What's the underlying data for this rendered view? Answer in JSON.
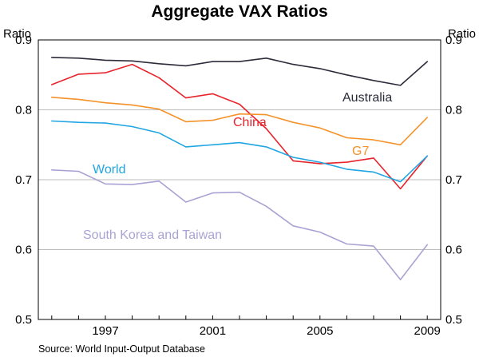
{
  "chart_data": {
    "type": "line",
    "title": "Aggregate VAX Ratios",
    "ylabel_left": "Ratio",
    "ylabel_right": "Ratio",
    "xlabel": "",
    "ylim": [
      0.5,
      0.9
    ],
    "xlim": [
      1994.5,
      2009.5
    ],
    "yticks": [
      0.9,
      0.8,
      0.7,
      0.6,
      0.5
    ],
    "ytick_labels": [
      "0.9",
      "0.8",
      "0.7",
      "0.6",
      "0.5"
    ],
    "xticks": [
      1997,
      2001,
      2005,
      2009
    ],
    "xtick_labels": [
      "1997",
      "2001",
      "2005",
      "2009"
    ],
    "grid": true,
    "source": "Source: World Input-Output Database",
    "x": [
      1995,
      1996,
      1997,
      1998,
      1999,
      2000,
      2001,
      2002,
      2003,
      2004,
      2005,
      2006,
      2007,
      2008,
      2009
    ],
    "series": [
      {
        "name": "Australia",
        "color": "#2b2b3a",
        "values": [
          0.875,
          0.874,
          0.871,
          0.87,
          0.866,
          0.863,
          0.869,
          0.869,
          0.874,
          0.865,
          0.859,
          0.85,
          0.842,
          0.835,
          0.869
        ]
      },
      {
        "name": "China",
        "color": "#e8232b",
        "values": [
          0.836,
          0.851,
          0.853,
          0.865,
          0.846,
          0.817,
          0.823,
          0.808,
          0.773,
          0.727,
          0.723,
          0.725,
          0.731,
          0.687,
          0.734
        ]
      },
      {
        "name": "G7",
        "color": "#f5922a",
        "values": [
          0.818,
          0.815,
          0.81,
          0.807,
          0.801,
          0.783,
          0.785,
          0.794,
          0.793,
          0.782,
          0.774,
          0.76,
          0.757,
          0.75,
          0.789
        ]
      },
      {
        "name": "World",
        "color": "#20a6e2",
        "values": [
          0.784,
          0.782,
          0.781,
          0.776,
          0.767,
          0.747,
          0.75,
          0.753,
          0.747,
          0.732,
          0.725,
          0.715,
          0.711,
          0.697,
          0.734
        ]
      },
      {
        "name": "South Korea and Taiwan",
        "color": "#a9a3d4",
        "values": [
          0.714,
          0.712,
          0.694,
          0.693,
          0.698,
          0.668,
          0.681,
          0.682,
          0.662,
          0.634,
          0.625,
          0.608,
          0.605,
          0.557,
          0.607
        ]
      }
    ]
  }
}
